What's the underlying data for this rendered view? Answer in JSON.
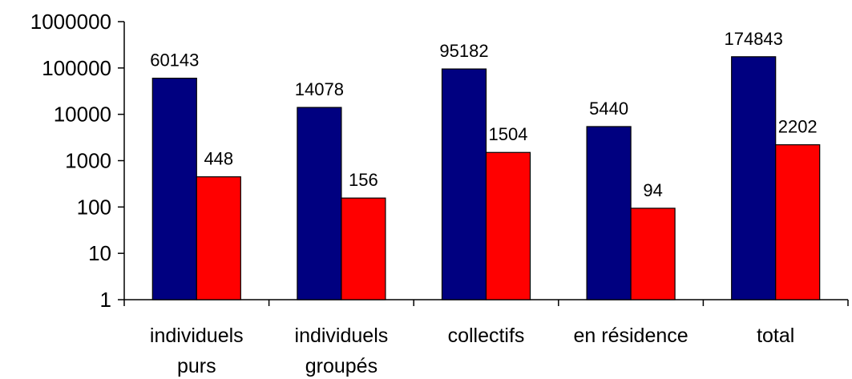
{
  "chart_data": {
    "type": "bar",
    "title": "",
    "xlabel": "",
    "ylabel": "",
    "yscale": "log",
    "ylim": [
      1,
      1000000
    ],
    "yticks": [
      "1",
      "10",
      "100",
      "1000",
      "10000",
      "100000",
      "1000000"
    ],
    "grid": false,
    "legend": "none",
    "categories": [
      [
        "individuels",
        "purs"
      ],
      [
        "individuels",
        "groupés"
      ],
      [
        "collectifs"
      ],
      [
        "en résidence"
      ],
      [
        "total"
      ]
    ],
    "series": [
      {
        "color": "#000080",
        "values": [
          60143,
          14078,
          95182,
          5440,
          174843
        ]
      },
      {
        "color": "#ff0000",
        "values": [
          448,
          156,
          1504,
          94,
          2202
        ]
      }
    ]
  }
}
